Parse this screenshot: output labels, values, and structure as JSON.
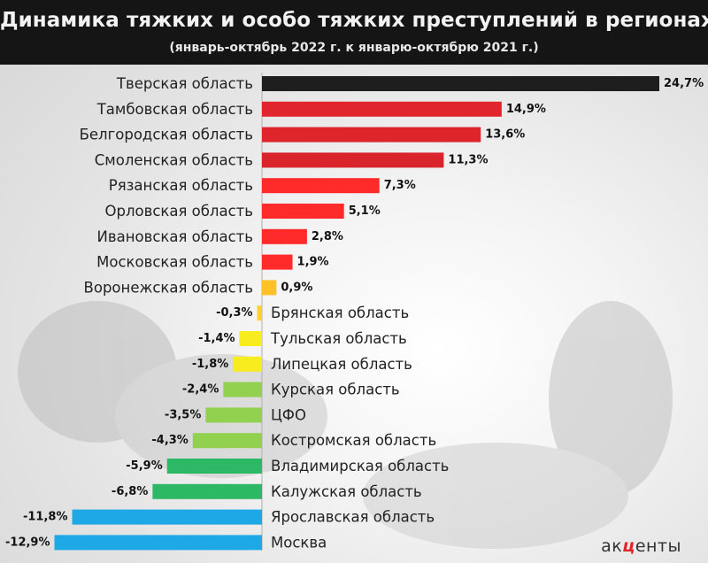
{
  "header": {
    "title": "Динамика тяжких  и особо тяжких преступлений  в регионах ЦФО",
    "subtitle": "(январь-октябрь 2022 г. к январю-октябрю 2021 г.)"
  },
  "logo": {
    "left": "ак",
    "mid": "ц",
    "right": "енты"
  },
  "chart_data": {
    "type": "bar",
    "orientation": "horizontal",
    "title": "Динамика тяжких  и особо тяжких преступлений  в регионах ЦФО",
    "subtitle": "(январь-октябрь 2022 г. к январю-октябрю 2021 г.)",
    "unit": "%",
    "categories": [
      "Тверская область",
      "Тамбовская область",
      "Белгородская область",
      "Смоленская область",
      "Рязанская область",
      "Орловская область",
      "Ивановская область",
      "Московская область",
      "Воронежская область",
      "Брянская область",
      "Тульская область",
      "Липецкая область",
      "Курская область",
      "ЦФО",
      "Костромская область",
      "Владимирская область",
      "Калужская область",
      "Ярославская область",
      "Москва"
    ],
    "values": [
      24.7,
      14.9,
      13.6,
      11.3,
      7.3,
      5.1,
      2.8,
      1.9,
      0.9,
      -0.3,
      -1.4,
      -1.8,
      -2.4,
      -3.5,
      -4.3,
      -5.9,
      -6.8,
      -11.8,
      -12.9
    ],
    "value_labels": [
      "24,7%",
      "14,9%",
      "13,6%",
      "11,3%",
      "7,3%",
      "5,1%",
      "2,8%",
      "1,9%",
      "0,9%",
      "-0,3%",
      "-1,4%",
      "-1,8%",
      "-2,4%",
      "-3,5%",
      "-4,3%",
      "-5,9%",
      "-6,8%",
      "-11,8%",
      "-12,9%"
    ],
    "colors": [
      "#1e1e1e",
      "#e0262c",
      "#dd252b",
      "#d8242a",
      "#ff2a2a",
      "#ff2a2a",
      "#ff2a2a",
      "#ff2a2a",
      "#ffc125",
      "#ffd12a",
      "#f6ec1e",
      "#f6ec1e",
      "#92d050",
      "#92d050",
      "#92d050",
      "#2db866",
      "#2db866",
      "#1fa8e6",
      "#1fa8e6"
    ],
    "grid": false,
    "legend": "none"
  }
}
